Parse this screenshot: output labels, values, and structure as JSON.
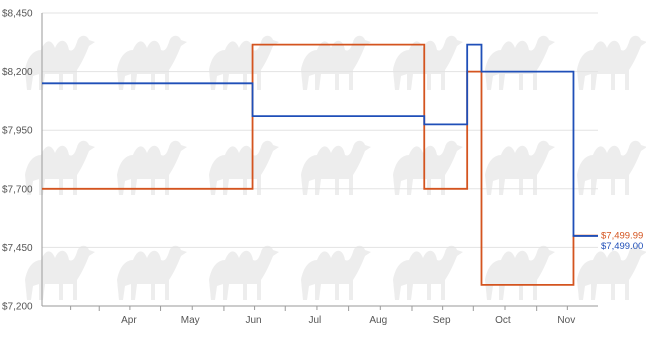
{
  "chart_data": {
    "type": "line",
    "step": true,
    "y_ticks": [
      "$8,450",
      "$8,200",
      "$7,950",
      "$7,700",
      "$7,450",
      "$7,200"
    ],
    "y_tick_values": [
      8450,
      8200,
      7950,
      7700,
      7450,
      7200
    ],
    "ylim": [
      7200,
      8450
    ],
    "x_ticks": [
      "Apr",
      "May",
      "Jun",
      "Jul",
      "Aug",
      "Sep",
      "Oct",
      "Nov"
    ],
    "x_tick_dates": [
      "2023-04-01",
      "2023-05-01",
      "2023-06-01",
      "2023-07-01",
      "2023-08-01",
      "2023-09-01",
      "2023-10-01",
      "2023-11-01"
    ],
    "xlim": [
      "2023-03-04",
      "2023-12-01"
    ],
    "grid": "horizontal",
    "series": [
      {
        "color": "#d4541f",
        "end_label": "$7,499.99",
        "points": [
          {
            "x": "2023-03-04",
            "y": 7700
          },
          {
            "x": "2023-06-15",
            "y": 8315
          },
          {
            "x": "2023-09-07",
            "y": 7700
          },
          {
            "x": "2023-09-28",
            "y": 8200
          },
          {
            "x": "2023-10-05",
            "y": 7290
          },
          {
            "x": "2023-11-19",
            "y": 7499.99
          }
        ]
      },
      {
        "color": "#1f4fb8",
        "end_label": "$7,499.00",
        "points": [
          {
            "x": "2023-03-04",
            "y": 8150
          },
          {
            "x": "2023-06-15",
            "y": 8010
          },
          {
            "x": "2023-09-07",
            "y": 7975
          },
          {
            "x": "2023-09-28",
            "y": 8315
          },
          {
            "x": "2023-10-05",
            "y": 8200
          },
          {
            "x": "2023-11-19",
            "y": 7499
          }
        ]
      }
    ]
  }
}
